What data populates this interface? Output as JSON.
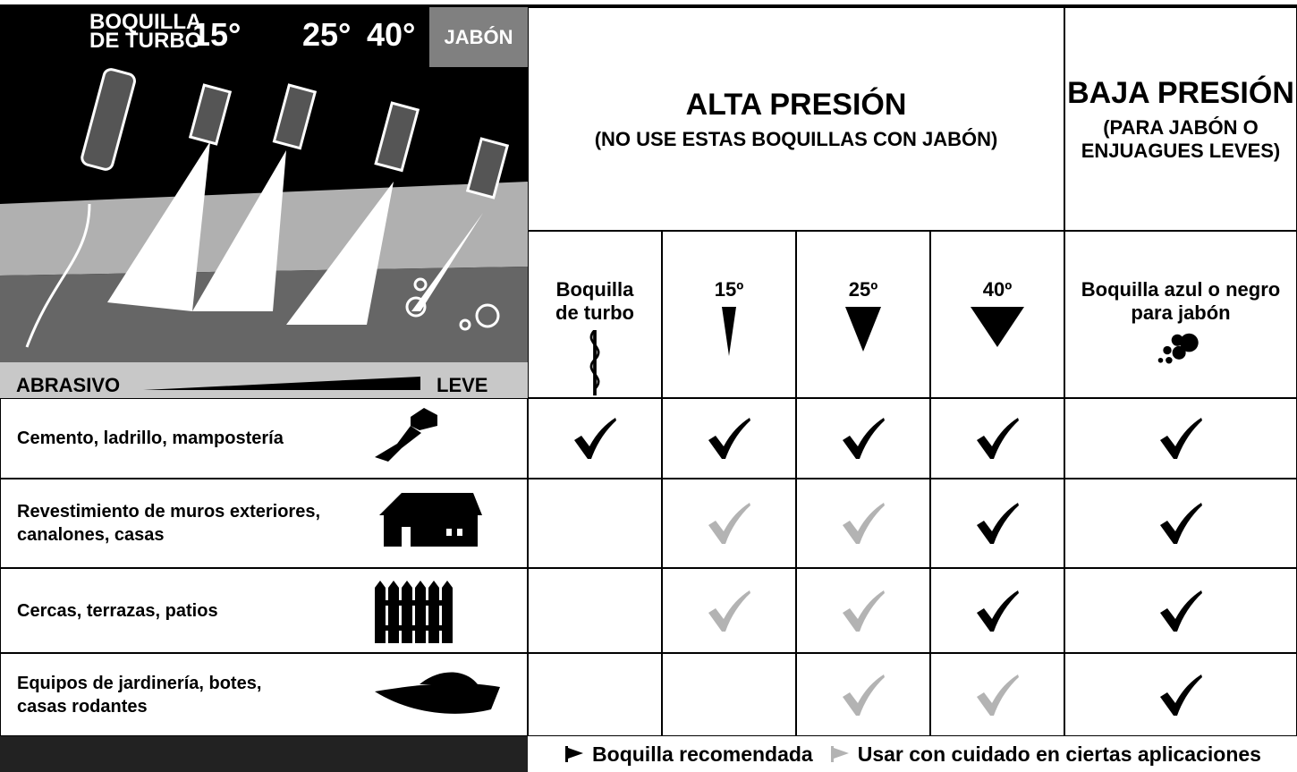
{
  "illustration": {
    "turbo_label": [
      "BOQUILLA",
      "DE TURBO"
    ],
    "angles": [
      "15°",
      "25°",
      "40°"
    ],
    "soap": "JABÓN",
    "scale_left": "ABRASIVO",
    "scale_right": "LEVE"
  },
  "header": {
    "high": {
      "title": "ALTA PRESIÓN",
      "subtitle": "(NO USE ESTAS BOQUILLAS CON JABÓN)"
    },
    "low": {
      "title": "BAJA PRESIÓN",
      "subtitle": [
        "(PARA JABÓN O",
        "ENJUAGUES LEVES)"
      ]
    }
  },
  "columns": [
    [
      "Boquilla",
      "de turbo"
    ],
    [
      "15º"
    ],
    [
      "25º"
    ],
    [
      "40º"
    ],
    [
      "Boquilla azul o negro",
      "para jabón"
    ]
  ],
  "rows": [
    {
      "label": [
        "Cemento, ladrillo, mampostería"
      ],
      "checks": [
        "#000000",
        "#000000",
        "#000000",
        "#000000",
        "#000000"
      ]
    },
    {
      "label": [
        "Revestimiento de muros exteriores,",
        "canalones, casas"
      ],
      "checks": [
        null,
        "#b3b3b3",
        "#b3b3b3",
        "#000000",
        "#000000"
      ]
    },
    {
      "label": [
        "Cercas, terrazas, patios"
      ],
      "checks": [
        null,
        "#b3b3b3",
        "#b3b3b3",
        "#000000",
        "#000000"
      ]
    },
    {
      "label": [
        "Equipos de jardinería, botes,",
        "casas rodantes"
      ],
      "checks": [
        null,
        null,
        "#b3b3b3",
        "#b3b3b3",
        "#000000"
      ]
    }
  ],
  "legend": [
    {
      "label": "Boquilla recomendada",
      "color": "#000000"
    },
    {
      "label": "Usar con cuidado en ciertas aplicaciones",
      "color": "#b3b3b3"
    }
  ]
}
